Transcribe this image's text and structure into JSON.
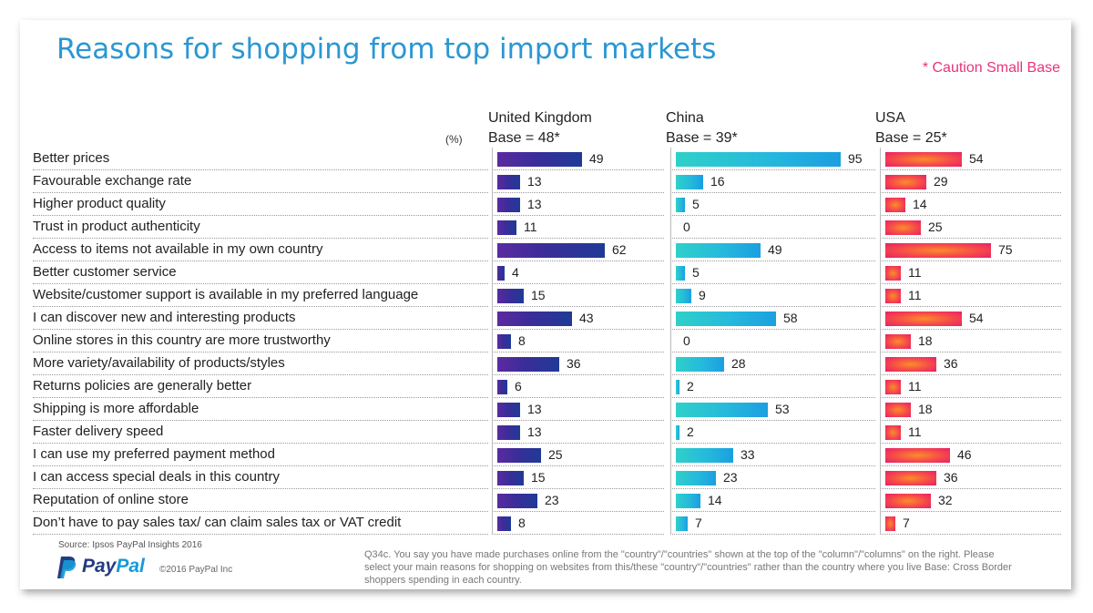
{
  "header": {
    "title": "Reasons for shopping from top import markets",
    "caution": "* Caution Small Base",
    "unit_label": "(%)"
  },
  "columns": [
    {
      "name": "United Kingdom",
      "base": "Base = 48*"
    },
    {
      "name": "China",
      "base": "Base = 39*"
    },
    {
      "name": "USA",
      "base": "Base = 25*"
    }
  ],
  "chart_data": {
    "type": "bar",
    "orientation": "horizontal",
    "categories": [
      "Better prices",
      "Favourable exchange rate",
      "Higher product quality",
      "Trust in product authenticity",
      "Access to items not available in my own country",
      "Better customer service",
      "Website/customer support is available in my preferred language",
      "I can discover new and interesting products",
      "Online stores in this country are more trustworthy",
      "More variety/availability of products/styles",
      "Returns policies are generally better",
      "Shipping is more affordable",
      "Faster delivery speed",
      "I can use my preferred payment method",
      "I can access special deals in this country",
      "Reputation of online store",
      "Don’t have to pay sales tax/ can claim sales tax or VAT credit"
    ],
    "series": [
      {
        "name": "United Kingdom",
        "values": [
          49,
          13,
          13,
          11,
          62,
          4,
          15,
          43,
          8,
          36,
          6,
          13,
          13,
          25,
          15,
          23,
          8
        ],
        "color": "#3a2d99"
      },
      {
        "name": "China",
        "values": [
          95,
          16,
          5,
          0,
          49,
          5,
          9,
          58,
          0,
          28,
          2,
          53,
          2,
          33,
          23,
          14,
          7
        ],
        "color": "#25b9dc"
      },
      {
        "name": "USA",
        "values": [
          54,
          29,
          14,
          25,
          75,
          11,
          11,
          54,
          18,
          36,
          11,
          18,
          11,
          46,
          36,
          32,
          7
        ],
        "color": "#f5494a"
      }
    ],
    "xlim": [
      0,
      100
    ]
  },
  "footer": {
    "source": "Source: Ipsos PayPal Insights 2016",
    "logo_pay": "Pay",
    "logo_pal": "Pal",
    "copyright": "©2016 PayPal Inc",
    "note": "Q34c. You say you have made purchases online from the \"country\"/\"countries\" shown at the top of the \"column\"/\"columns\" on the right. Please select your main reasons for shopping on websites from this/these \"country\"/\"countries\" rather than the country where you live Base: Cross Border shoppers spending in each country."
  },
  "colors": {
    "title": "#2a97d4",
    "caution": "#e8337d",
    "paypal_dark": "#253b80",
    "paypal_light": "#179bd7"
  }
}
